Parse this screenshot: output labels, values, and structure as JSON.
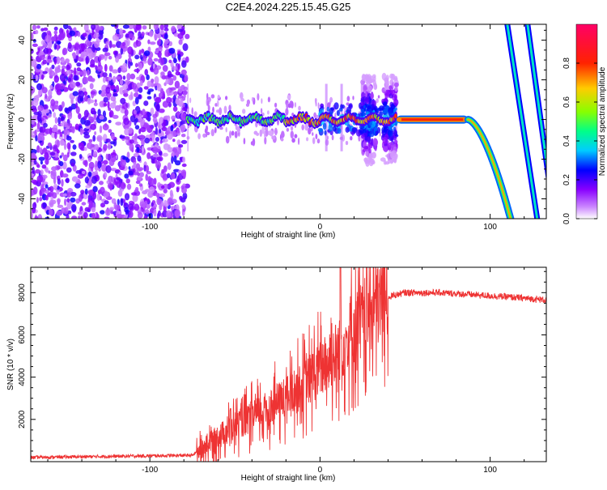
{
  "title": "C2E4.2024.225.15.45.G25",
  "chart_data": [
    {
      "type": "heatmap",
      "xlabel": "Height of straight line (km)",
      "ylabel": "Frequency (Hz)",
      "xlim": [
        -170,
        133
      ],
      "ylim": [
        -50,
        48
      ],
      "x_ticks": [
        -100,
        0,
        100
      ],
      "y_ticks": [
        -40,
        -20,
        0,
        20,
        40
      ],
      "colorbar": {
        "label": "Normalized spectral amplitude",
        "range": [
          0,
          1
        ],
        "ticks": [
          "0.0",
          "0.2",
          "0.4",
          "0.6",
          "0.8"
        ],
        "colormap": [
          "#ffffff",
          "#8800ff",
          "#0000ff",
          "#00ccff",
          "#00ff88",
          "#88ff00",
          "#ffcc00",
          "#ff2200",
          "#ff0066"
        ]
      },
      "regions": [
        {
          "kind": "noise",
          "x_range": [
            -170,
            -78
          ],
          "f_range": [
            -50,
            48
          ]
        },
        {
          "kind": "weak-line",
          "x_range": [
            -78,
            0
          ],
          "center_f": 0
        },
        {
          "kind": "bursts",
          "x_range": [
            0,
            45
          ],
          "center_f": 0
        },
        {
          "kind": "strong-line",
          "x_range": [
            45,
            87
          ],
          "center_f": 0
        },
        {
          "kind": "curve",
          "x_range": [
            87,
            112
          ],
          "f_end": -50
        },
        {
          "kind": "aliased-line",
          "x_range": [
            112,
            133
          ],
          "f_range": [
            48,
            -50
          ]
        }
      ]
    },
    {
      "type": "line",
      "xlabel": "Height of straight line (km)",
      "ylabel": "SNR (10 * v/v)",
      "xlim": [
        -170,
        133
      ],
      "ylim": [
        0,
        9200
      ],
      "x_ticks": [
        -100,
        0,
        100
      ],
      "y_ticks": [
        2000,
        4000,
        6000,
        8000
      ],
      "color": "#ee3333",
      "envelope": {
        "x": [
          -170,
          -75,
          -70,
          -60,
          -50,
          -40,
          -30,
          -20,
          -10,
          0,
          10,
          20,
          30,
          40,
          50,
          70,
          90,
          110,
          133
        ],
        "y": [
          200,
          300,
          600,
          1200,
          1700,
          2100,
          2500,
          3000,
          3600,
          4400,
          5200,
          6200,
          7200,
          7800,
          8000,
          8000,
          7900,
          7800,
          7650
        ]
      }
    }
  ]
}
